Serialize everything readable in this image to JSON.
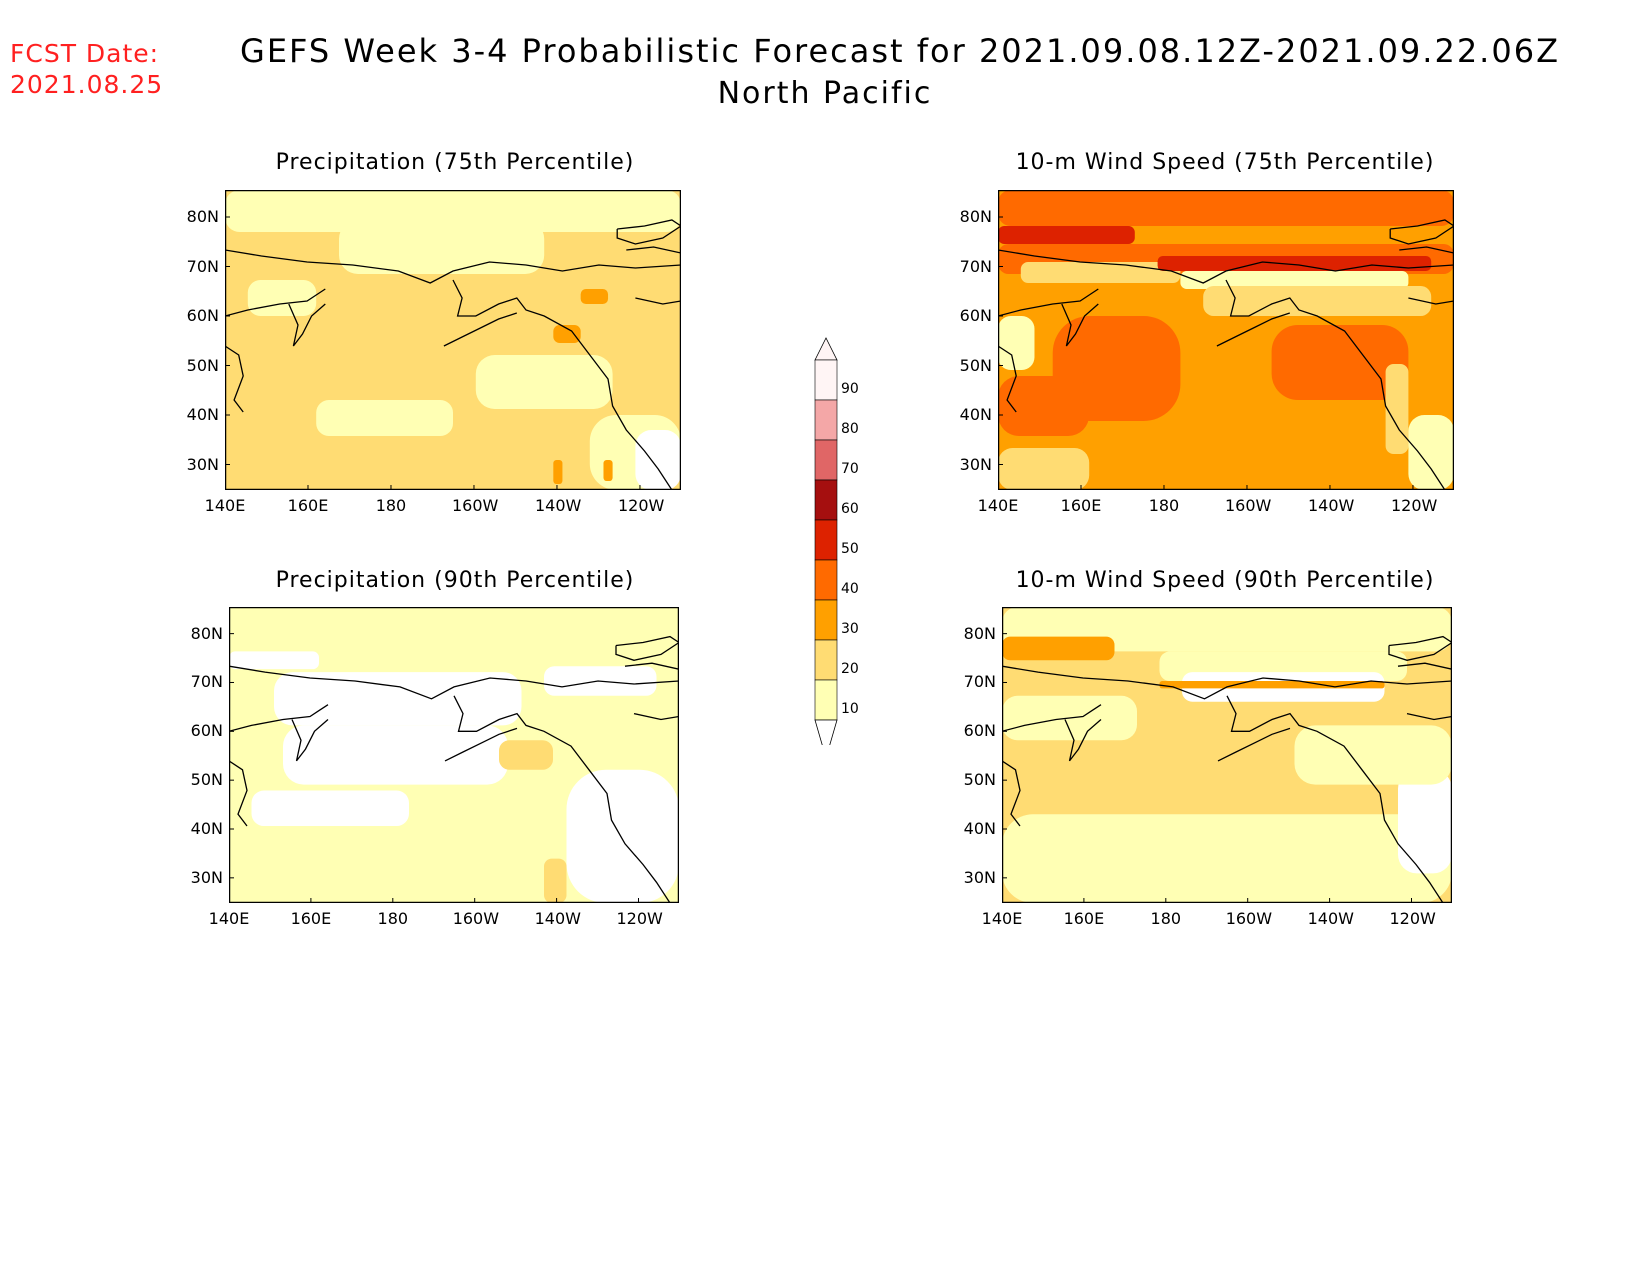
{
  "fcst_label": "FCST Date:",
  "fcst_date": "2021.08.25",
  "title_line1": "GEFS Week 3-4 Probabilistic Forecast for 2021.09.08.12Z-2021.09.22.06Z",
  "title_line2": "North Pacific",
  "panels": [
    {
      "title": "Precipitation (75th Percentile)"
    },
    {
      "title": "10-m Wind Speed (75th Percentile)"
    },
    {
      "title": "Precipitation (90th Percentile)"
    },
    {
      "title": "10-m Wind Speed (90th Percentile)"
    }
  ],
  "lon_ticks": [
    "140E",
    "160E",
    "180",
    "160W",
    "140W",
    "120W"
  ],
  "lat_ticks": [
    "80N",
    "70N",
    "60N",
    "50N",
    "40N",
    "30N"
  ],
  "colorbar": {
    "labels": [
      "90",
      "80",
      "70",
      "60",
      "50",
      "40",
      "30",
      "20",
      "10"
    ],
    "colors": [
      "#fff5f5",
      "#f4a7a7",
      "#e06666",
      "#a50f0f",
      "#dd2200",
      "#ff6a00",
      "#ffa000",
      "#ffdc73",
      "#ffffb4"
    ]
  }
}
